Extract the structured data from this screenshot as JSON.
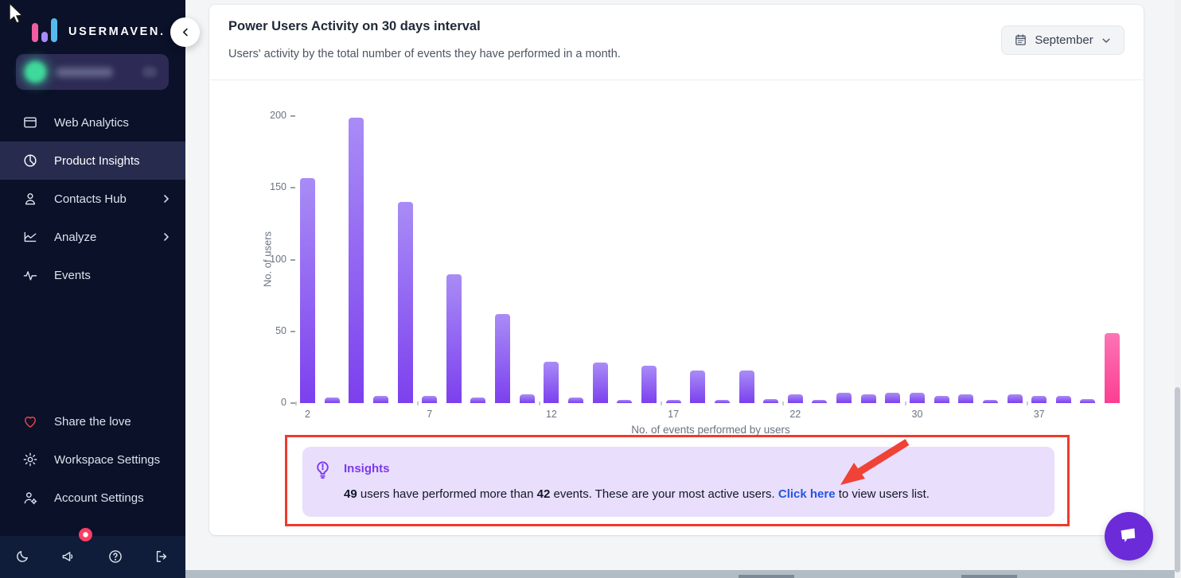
{
  "cursor": "mouse-pointer",
  "sidebar": {
    "brand": "USERMAVEN.",
    "collapse_icon": "chevron-left-icon",
    "workspace": {
      "avatar": "workspace-avatar-blurred",
      "name": "redacted"
    },
    "nav": [
      {
        "label": "Web Analytics",
        "icon": "browser-window-icon",
        "active": false,
        "chevron": false
      },
      {
        "label": "Product Insights",
        "icon": "pie-chart-icon",
        "active": true,
        "chevron": false
      },
      {
        "label": "Contacts Hub",
        "icon": "person-icon",
        "active": false,
        "chevron": true
      },
      {
        "label": "Analyze",
        "icon": "area-chart-icon",
        "active": false,
        "chevron": true
      },
      {
        "label": "Events",
        "icon": "activity-icon",
        "active": false,
        "chevron": false
      }
    ],
    "secondary_nav": [
      {
        "label": "Share the love",
        "icon": "heart-icon"
      },
      {
        "label": "Workspace Settings",
        "icon": "gear-icon"
      },
      {
        "label": "Account Settings",
        "icon": "user-gear-icon"
      }
    ],
    "footer_icons": [
      "moon-icon",
      "megaphone-icon",
      "help-icon",
      "logout-icon"
    ],
    "notification_dot": true
  },
  "header": {
    "title": "Power Users Activity on 30 days interval",
    "subtitle": "Users' activity by the total number of events they have performed in a month.",
    "month_selector": {
      "icon": "calendar-icon",
      "label": "September",
      "chevron": "chevron-down-icon"
    }
  },
  "chart_data": {
    "type": "bar",
    "title": "Power Users Activity on 30 days interval",
    "xlabel": "No. of events performed by users",
    "ylabel": "No. of users",
    "ylim": [
      0,
      200
    ],
    "yticks": [
      0,
      50,
      100,
      150,
      200
    ],
    "grid": false,
    "legend": "none",
    "values": [
      157,
      4,
      199,
      5,
      140,
      5,
      90,
      4,
      62,
      6,
      29,
      4,
      28,
      2,
      26,
      2,
      23,
      2,
      23,
      3,
      6,
      2,
      7,
      6,
      7,
      7,
      5,
      6,
      2,
      6,
      5,
      5,
      3,
      49
    ],
    "x_tick_labels": [
      {
        "index": 0,
        "label": "2"
      },
      {
        "index": 5,
        "label": "7"
      },
      {
        "index": 10,
        "label": "12"
      },
      {
        "index": 15,
        "label": "17"
      },
      {
        "index": 20,
        "label": "22"
      },
      {
        "index": 25,
        "label": "30"
      },
      {
        "index": 30,
        "label": "37"
      }
    ],
    "highlight_last_bar": true
  },
  "insights": {
    "icon": "lightbulb-icon",
    "title": "Insights",
    "users_count": "49",
    "part1": " users have performed more than ",
    "events_count": "42",
    "part2": " events. These are your most active users. ",
    "link_label": "Click here",
    "part3": " to view users list."
  },
  "annotations": {
    "red_rectangle": true,
    "red_arrow_target": "Click here"
  },
  "colors": {
    "sidebar_bg": "#0a1128",
    "accent_purple": "#7c3aed",
    "bar_purple_top": "#a98cf6",
    "bar_purple_bottom": "#7c40ee",
    "bar_pink": "#fb3f92",
    "insights_bg": "#e9defc",
    "link_blue": "#2456e0",
    "annotation_red": "#ee3b2c",
    "chat_button_purple": "#6c2bd9",
    "notification_red": "#fb3e63"
  }
}
